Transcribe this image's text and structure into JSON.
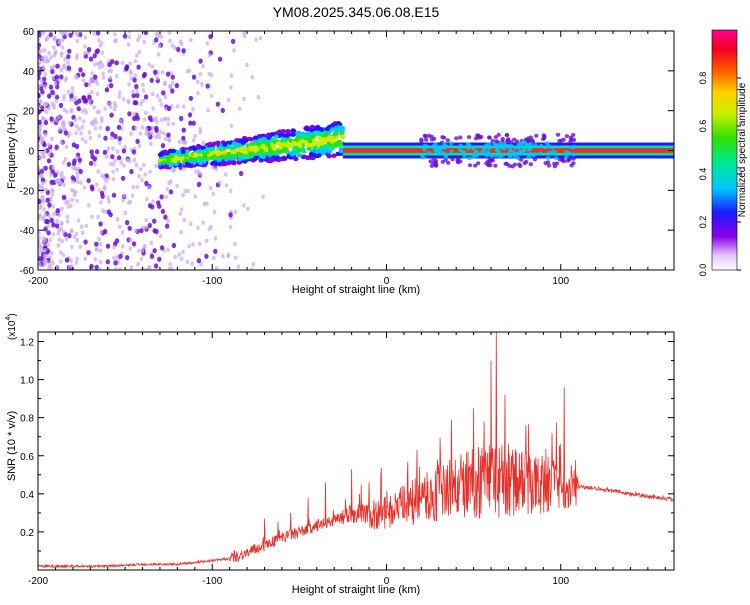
{
  "title": "YM08.2025.345.06.08.E15",
  "colors": {
    "axis": "#000000",
    "snr_line": "#e8302a",
    "spectrum_core": "#e8302a",
    "spectrum_low": "#c9a8f0",
    "spectrum_mid": "#6a0fd8"
  },
  "chart_data": [
    {
      "type": "heatmap",
      "title": "",
      "xlabel": "Height of straight line (km)",
      "ylabel": "Frequency (Hz)",
      "xlim": [
        -200,
        165
      ],
      "ylim": [
        -60,
        60
      ],
      "x_ticks": [
        "-200",
        "-100",
        "0",
        "100"
      ],
      "y_ticks": [
        "60",
        "40",
        "20",
        "0",
        "-20",
        "-40",
        "-60"
      ],
      "colorbar": {
        "label": "Normalized spectral amplitude",
        "range": [
          0,
          1
        ],
        "ticks": [
          "0.0",
          "0.2",
          "0.4",
          "0.6",
          "0.8"
        ],
        "colormap": "rainbow-purple-to-magenta"
      },
      "features": [
        {
          "name": "broadband scatter",
          "x_range": [
            -200,
            -80
          ],
          "freq_range": [
            -60,
            60
          ],
          "amplitude": 0.15
        },
        {
          "name": "wedge band",
          "x_range": [
            -130,
            -25
          ],
          "center_freq": [
            -5,
            6
          ],
          "half_width": [
            4,
            9
          ],
          "amplitude": 0.6
        },
        {
          "name": "line",
          "x_range": [
            -25,
            165
          ],
          "center_freq": 0,
          "half_width": 2,
          "amplitude": 0.95
        }
      ]
    },
    {
      "type": "line",
      "title": "",
      "xlabel": "Height of straight line (km)",
      "ylabel": "SNR (10 * v/v)",
      "multiplier_label": "(x10",
      "multiplier_exp": "4",
      "xlim": [
        -200,
        165
      ],
      "ylim": [
        0,
        1.25
      ],
      "x_ticks": [
        "-200",
        "-100",
        "0",
        "100"
      ],
      "y_ticks": [
        "0.2",
        "0.4",
        "0.6",
        "0.8",
        "1.0",
        "1.2"
      ],
      "series": [
        {
          "x": [
            -200,
            -180,
            -160,
            -140,
            -120,
            -100,
            -90,
            -80,
            -70,
            -60,
            -50,
            -40,
            -30,
            -20,
            -10,
            0,
            10,
            20,
            30,
            40,
            50,
            60,
            70,
            80,
            90,
            100,
            110,
            120,
            140,
            165
          ],
          "values": [
            0.02,
            0.02,
            0.02,
            0.03,
            0.03,
            0.05,
            0.06,
            0.09,
            0.13,
            0.17,
            0.2,
            0.23,
            0.26,
            0.3,
            0.28,
            0.3,
            0.34,
            0.37,
            0.4,
            0.43,
            0.46,
            0.47,
            0.46,
            0.46,
            0.44,
            0.45,
            0.44,
            0.43,
            0.4,
            0.37
          ]
        }
      ],
      "spikes": [
        {
          "x": -70,
          "y": 0.27
        },
        {
          "x": -55,
          "y": 0.3
        },
        {
          "x": -45,
          "y": 0.38
        },
        {
          "x": -35,
          "y": 0.46
        },
        {
          "x": -20,
          "y": 0.53
        },
        {
          "x": -10,
          "y": 0.46
        },
        {
          "x": 10,
          "y": 0.44
        },
        {
          "x": 35,
          "y": 0.55
        },
        {
          "x": 50,
          "y": 0.85
        },
        {
          "x": 56,
          "y": 0.78
        },
        {
          "x": 60,
          "y": 1.1
        },
        {
          "x": 63,
          "y": 1.25
        },
        {
          "x": 68,
          "y": 0.92
        },
        {
          "x": 80,
          "y": 0.76
        },
        {
          "x": 95,
          "y": 0.72
        },
        {
          "x": 102,
          "y": 0.96
        },
        {
          "x": 106,
          "y": 0.55
        }
      ]
    }
  ]
}
